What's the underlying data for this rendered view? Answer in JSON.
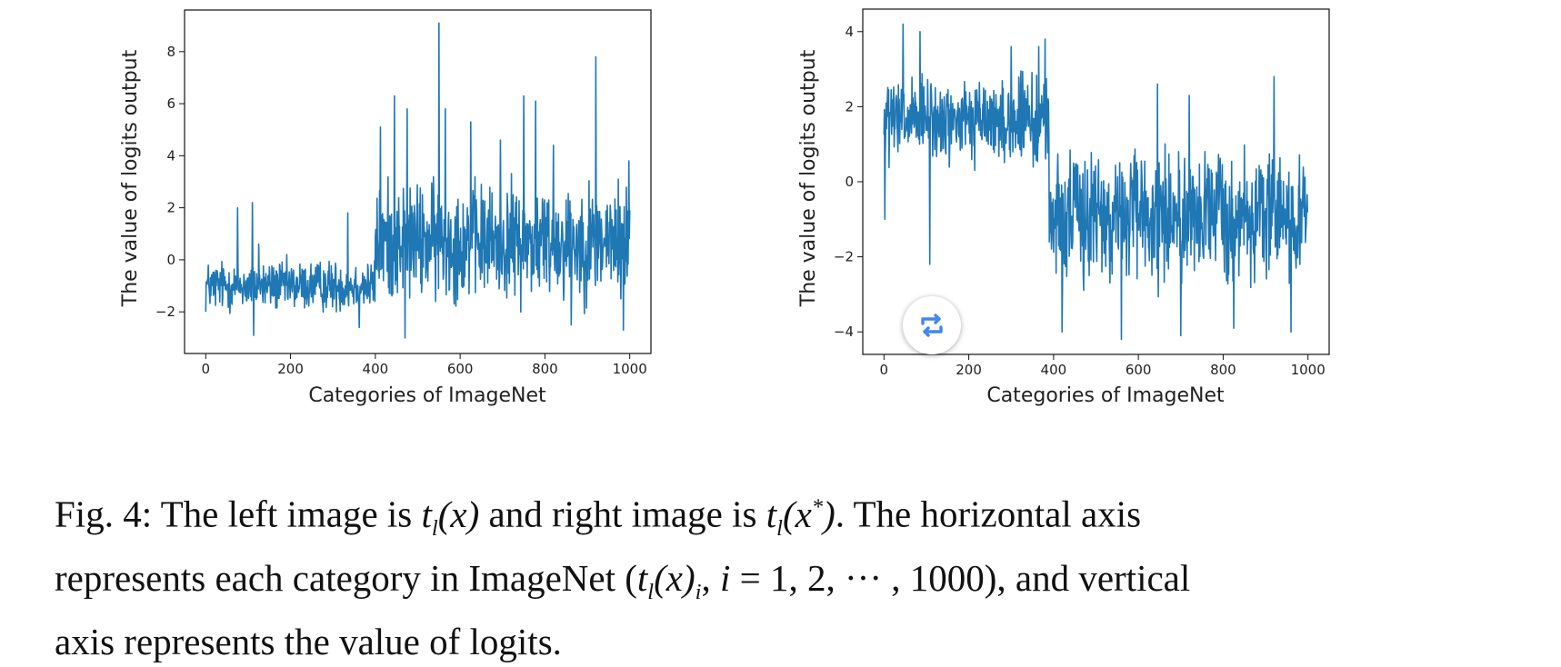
{
  "chart_data": [
    {
      "type": "line",
      "panel": "left",
      "series_name": "t_l(x)",
      "xlabel": "Categories of ImageNet",
      "ylabel": "The value of logits output",
      "xlim": [
        -50,
        1050
      ],
      "ylim": [
        -3.6,
        9.6
      ],
      "xticks": [
        0,
        200,
        400,
        600,
        800,
        1000
      ],
      "yticks": [
        -2,
        0,
        2,
        4,
        6,
        8
      ],
      "line_color": "#1f77b4",
      "segments": [
        {
          "start": 0,
          "end": 400,
          "mean": -1.0,
          "amp": 1.4
        },
        {
          "start": 400,
          "end": 1000,
          "mean": 0.7,
          "amp": 3.2
        }
      ],
      "peaks": [
        {
          "x": 0,
          "y": -2.0
        },
        {
          "x": 75,
          "y": 2.0
        },
        {
          "x": 110,
          "y": 2.2
        },
        {
          "x": 113,
          "y": -2.9
        },
        {
          "x": 125,
          "y": 0.6
        },
        {
          "x": 335,
          "y": 1.8
        },
        {
          "x": 362,
          "y": -2.6
        },
        {
          "x": 412,
          "y": 5.1
        },
        {
          "x": 445,
          "y": 6.3
        },
        {
          "x": 470,
          "y": -3.0
        },
        {
          "x": 475,
          "y": 5.8
        },
        {
          "x": 550,
          "y": 9.1
        },
        {
          "x": 565,
          "y": 5.8
        },
        {
          "x": 625,
          "y": 5.3
        },
        {
          "x": 695,
          "y": 4.6
        },
        {
          "x": 750,
          "y": 6.3
        },
        {
          "x": 778,
          "y": 6.1
        },
        {
          "x": 820,
          "y": 4.4
        },
        {
          "x": 862,
          "y": -2.5
        },
        {
          "x": 920,
          "y": 7.8
        },
        {
          "x": 985,
          "y": -2.7
        },
        {
          "x": 998,
          "y": 3.8
        }
      ]
    },
    {
      "type": "line",
      "panel": "right",
      "series_name": "t_l(x*)",
      "xlabel": "Categories of ImageNet",
      "ylabel": "The value of logits output",
      "xlim": [
        -50,
        1050
      ],
      "ylim": [
        -4.6,
        4.6
      ],
      "xticks": [
        0,
        200,
        400,
        600,
        800,
        1000
      ],
      "yticks": [
        -4,
        -2,
        0,
        2,
        4
      ],
      "line_color": "#1f77b4",
      "segments": [
        {
          "start": 0,
          "end": 390,
          "mean": 1.6,
          "amp": 1.6
        },
        {
          "start": 390,
          "end": 1000,
          "mean": -0.9,
          "amp": 2.4
        }
      ],
      "peaks": [
        {
          "x": 2,
          "y": -1.0
        },
        {
          "x": 45,
          "y": 4.2
        },
        {
          "x": 85,
          "y": 4.0
        },
        {
          "x": 108,
          "y": -2.2
        },
        {
          "x": 300,
          "y": 3.6
        },
        {
          "x": 365,
          "y": 3.6
        },
        {
          "x": 380,
          "y": 3.8
        },
        {
          "x": 420,
          "y": -4.0
        },
        {
          "x": 560,
          "y": -4.2
        },
        {
          "x": 645,
          "y": 2.6
        },
        {
          "x": 700,
          "y": -4.1
        },
        {
          "x": 720,
          "y": 2.3
        },
        {
          "x": 825,
          "y": -3.9
        },
        {
          "x": 920,
          "y": 2.8
        },
        {
          "x": 960,
          "y": -4.0
        },
        {
          "x": 1000,
          "y": -0.8
        }
      ]
    }
  ],
  "caption": {
    "line1": "Fig. 4: The left image is tl(x) and right image is tl(x*). The horizontal axis",
    "line2": "represents each category in ImageNet (tl(x)i, i = 1, 2, ··· , 1000), and vertical",
    "line3": "axis represents the value of logits."
  },
  "badge": {
    "icon": "repeat-icon",
    "color": "#4285f4"
  }
}
